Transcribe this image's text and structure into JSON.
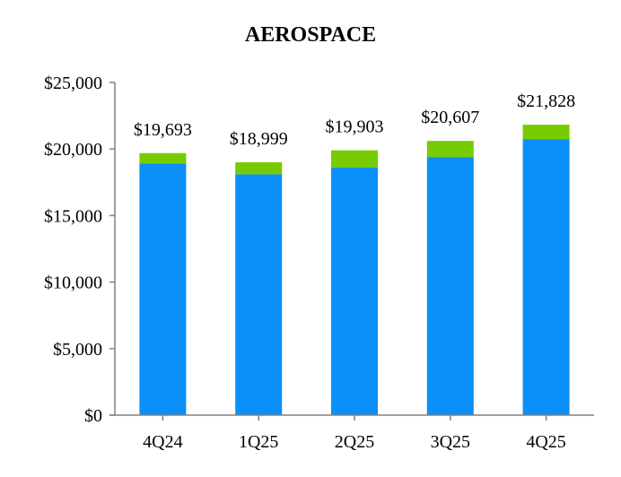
{
  "chart_data": {
    "type": "bar",
    "stacked": true,
    "title": "AEROSPACE",
    "xlabel": "",
    "ylabel": "",
    "categories": [
      "4Q24",
      "1Q25",
      "2Q25",
      "3Q25",
      "4Q25"
    ],
    "series": [
      {
        "name": "Base",
        "color": "#0a90f8",
        "values": [
          18900,
          18100,
          18600,
          19400,
          20750
        ]
      },
      {
        "name": "Top",
        "color": "#77cc00",
        "values": [
          793,
          899,
          1303,
          1207,
          1078
        ]
      }
    ],
    "totals": [
      19693,
      18999,
      19903,
      20607,
      21828
    ],
    "total_labels": [
      "$19,693",
      "$18,999",
      "$19,903",
      "$20,607",
      "$21,828"
    ],
    "ylim": [
      0,
      25000
    ],
    "yticks": [
      0,
      5000,
      10000,
      15000,
      20000,
      25000
    ],
    "ytick_labels": [
      "$0",
      "$5,000",
      "$10,000",
      "$15,000",
      "$20,000",
      "$25,000"
    ],
    "grid": false,
    "legend": "none",
    "axis_color": "#808080"
  }
}
